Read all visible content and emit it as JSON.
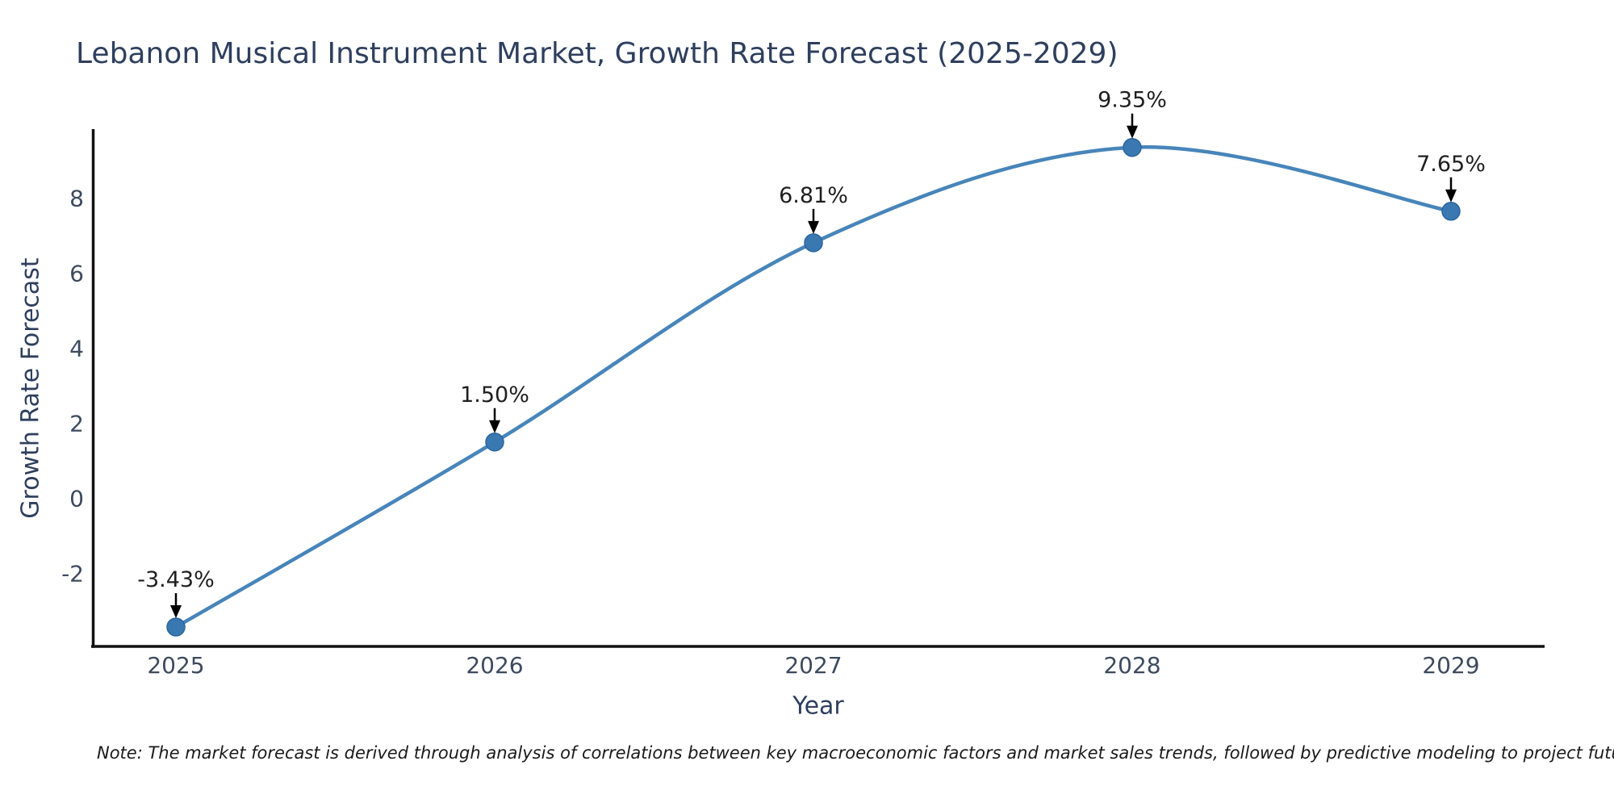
{
  "note": "Note: The market forecast is derived through analysis of correlations between key macroeconomic factors and market sales trends, followed by predictive modeling to project future sales",
  "colors": {
    "line": "#4785ba",
    "marker_fill": "#3a78b2",
    "marker_edge": "#2b669e",
    "axis_spine": "#111111",
    "tick_text": "#3d4a5e",
    "annotation_text": "#1f1f1f",
    "arrow": "#000000",
    "title_text": "#2e3f5e"
  },
  "chart_data": {
    "type": "line",
    "title": "Lebanon Musical Instrument Market, Growth Rate Forecast (2025-2029)",
    "xlabel": "Year",
    "ylabel": "Growth Rate Forecast",
    "categories": [
      "2025",
      "2026",
      "2027",
      "2028",
      "2029"
    ],
    "values": [
      -3.43,
      1.5,
      6.81,
      9.35,
      7.65
    ],
    "point_labels": [
      "-3.43%",
      "1.50%",
      "6.81%",
      "9.35%",
      "7.65%"
    ],
    "yticks": [
      -2,
      0,
      2,
      4,
      6,
      8
    ],
    "ylim": [
      -3.95,
      9.84
    ],
    "grid": false,
    "legend": "none",
    "smooth_line": true,
    "annotation_style": "value label above point with downward black arrow"
  }
}
